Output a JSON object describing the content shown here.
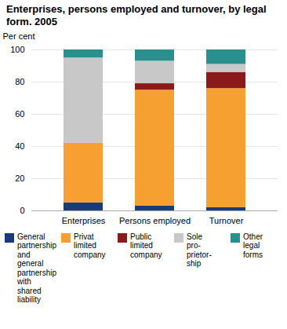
{
  "chart_data": {
    "type": "bar",
    "stacked": true,
    "title": "Enterprises, persons employed and turnover, by legal\nform. 2005",
    "ylabel": "Per cent",
    "categories": [
      "Enterprises",
      "Persons employed",
      "Turnover"
    ],
    "series": [
      {
        "name": "General\npartnership\nand general\npartnership\nwith shared\nliability",
        "color": "#1a3b7a",
        "values": [
          5,
          3,
          2
        ]
      },
      {
        "name": "Privat\nlimited\ncompany",
        "color": "#f5a030",
        "values": [
          37,
          72,
          74
        ]
      },
      {
        "name": "Public\nlimited\ncompany",
        "color": "#8b1a1a",
        "values": [
          0,
          4,
          10
        ]
      },
      {
        "name": "Sole\npro-\nprietor-\nship",
        "color": "#c8c8c8",
        "values": [
          53,
          14,
          5
        ]
      },
      {
        "name": "Other\nlegal\nforms",
        "color": "#2a8f8f",
        "values": [
          5,
          7,
          9
        ]
      }
    ],
    "ylim": [
      0,
      100
    ],
    "yticks": [
      0,
      20,
      40,
      60,
      80,
      100
    ],
    "grid": true,
    "legend": "bottom"
  }
}
